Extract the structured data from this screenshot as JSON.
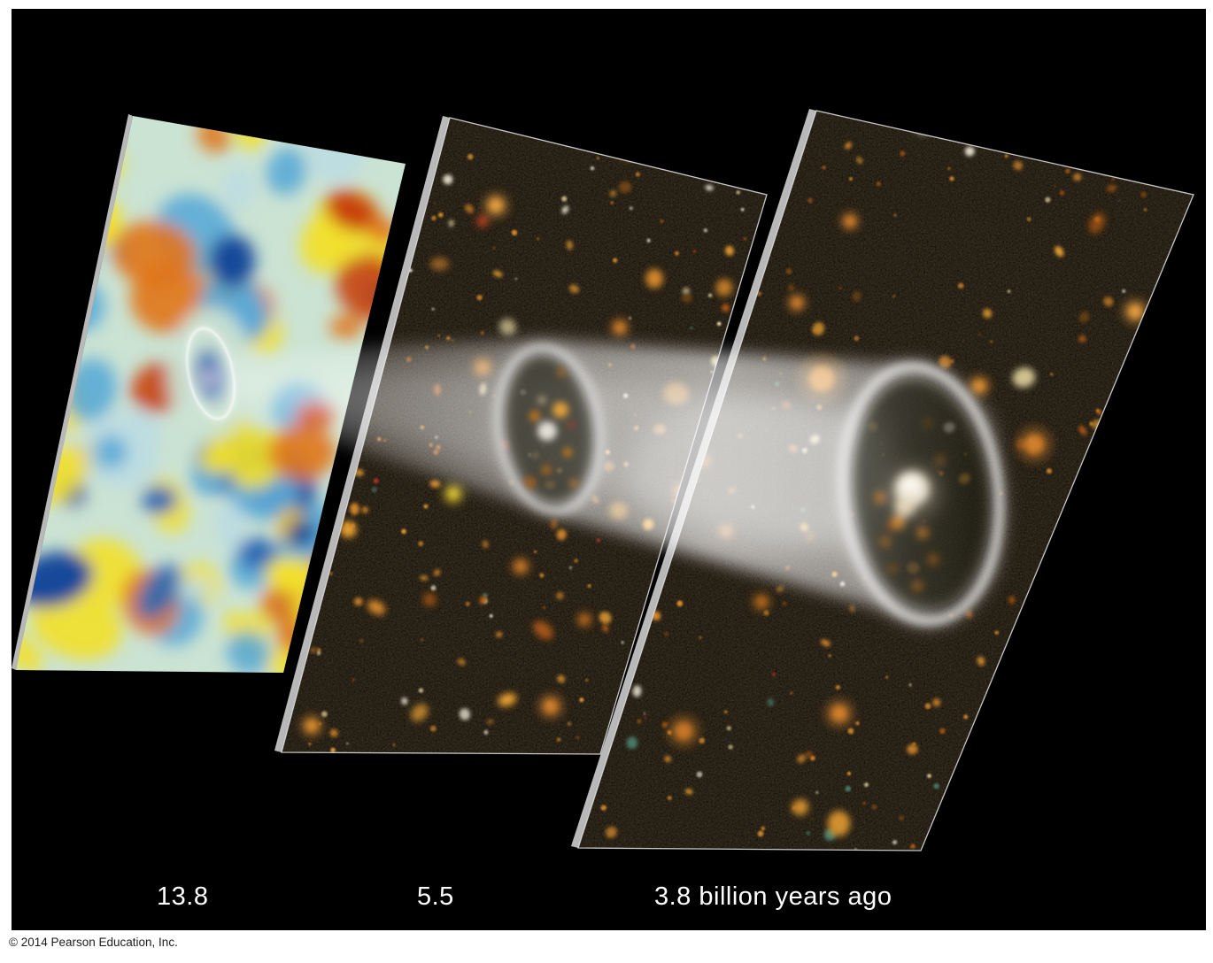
{
  "figure": {
    "name": "lookback-time-figure",
    "description_labels": [
      "13.8",
      "5.5",
      "3.8 billion years ago"
    ]
  },
  "labels": {
    "cmb_age": "13.8",
    "mid_age": "5.5",
    "right_age": "3.8 billion years ago"
  },
  "copyright": "© 2014 Pearson Education, Inc.",
  "panels": [
    {
      "name": "cmb-map-panel",
      "label": "13.8"
    },
    {
      "name": "galaxy-field-panel-mid",
      "label": "5.5"
    },
    {
      "name": "galaxy-field-panel-near",
      "label": "3.8 billion years ago"
    }
  ],
  "colors": {
    "page": "#ffffff",
    "figure_background": "#000000",
    "sky": "#0b0906",
    "panel_edge_light": "#e6e6e6",
    "panel_edge_dark": "#8a8a8a",
    "panel_outline": "#dcdcdc",
    "beam": "#ffffff",
    "ring": "#ececec",
    "annotation_circle": "#ffffff",
    "cmb_base": "#cbe3d3",
    "cmb_palette": [
      "#f2e02a",
      "#eec11e",
      "#e0761a",
      "#c8430c",
      "#5aaad6",
      "#2a6ab4",
      "#15489a",
      "#bcdce2"
    ],
    "star_palette": [
      "#d98a2b",
      "#f0a432",
      "#b05a14",
      "#e8d9a0",
      "#f2ead8",
      "#cc3924",
      "#4a7a68",
      "#7a4a14"
    ]
  }
}
